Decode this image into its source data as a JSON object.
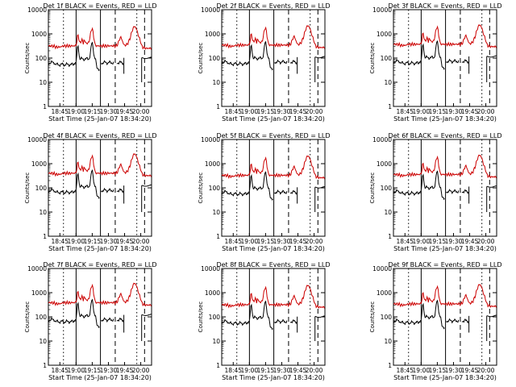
{
  "figure": {
    "xlabel": "Start Time (25-Jan-07 18:34:20)",
    "ylabel": "Counts/sec"
  },
  "chart_data": [
    {
      "type": "line",
      "title": "Det 1f BLACK = Events, RED = LLD",
      "x_ticks": [
        "18:45",
        "19:00",
        "19:15",
        "19:30",
        "19:45",
        "20:00"
      ],
      "y_ticks": [
        "1",
        "10",
        "100",
        "1000",
        "10000"
      ],
      "ylim": [
        1,
        10000
      ],
      "y_scale": "log",
      "series_colors": {
        "events": "#000000",
        "lld": "#cc0000"
      }
    },
    {
      "type": "line",
      "title": "Det 2f BLACK = Events, RED = LLD",
      "x_ticks": [
        "18:45",
        "19:00",
        "19:15",
        "19:30",
        "19:45",
        "20:00"
      ],
      "y_ticks": [
        "1",
        "10",
        "100",
        "1000",
        "10000"
      ],
      "ylim": [
        1,
        10000
      ],
      "y_scale": "log",
      "series_colors": {
        "events": "#000000",
        "lld": "#cc0000"
      }
    },
    {
      "type": "line",
      "title": "Det 3f BLACK = Events, RED = LLD",
      "x_ticks": [
        "18:45",
        "19:00",
        "19:15",
        "19:30",
        "19:45",
        "20:00"
      ],
      "y_ticks": [
        "1",
        "10",
        "100",
        "1000",
        "10000"
      ],
      "ylim": [
        1,
        10000
      ],
      "y_scale": "log",
      "series_colors": {
        "events": "#000000",
        "lld": "#cc0000"
      }
    },
    {
      "type": "line",
      "title": "Det 4f BLACK = Events, RED = LLD",
      "x_ticks": [
        "18:45",
        "19:00",
        "19:15",
        "19:30",
        "19:45",
        "20:00"
      ],
      "y_ticks": [
        "1",
        "10",
        "100",
        "1000",
        "10000"
      ],
      "ylim": [
        1,
        10000
      ],
      "y_scale": "log",
      "series_colors": {
        "events": "#000000",
        "lld": "#cc0000"
      }
    },
    {
      "type": "line",
      "title": "Det 5f BLACK = Events, RED = LLD",
      "x_ticks": [
        "18:45",
        "19:00",
        "19:15",
        "19:30",
        "19:45",
        "20:00"
      ],
      "y_ticks": [
        "1",
        "10",
        "100",
        "1000",
        "10000"
      ],
      "ylim": [
        1,
        10000
      ],
      "y_scale": "log",
      "series_colors": {
        "events": "#000000",
        "lld": "#cc0000"
      }
    },
    {
      "type": "line",
      "title": "Det 6f BLACK = Events, RED = LLD",
      "x_ticks": [
        "18:45",
        "19:00",
        "19:15",
        "19:30",
        "19:45",
        "20:00"
      ],
      "y_ticks": [
        "1",
        "10",
        "100",
        "1000",
        "10000"
      ],
      "ylim": [
        1,
        10000
      ],
      "y_scale": "log",
      "series_colors": {
        "events": "#000000",
        "lld": "#cc0000"
      }
    },
    {
      "type": "line",
      "title": "Det 7f BLACK = Events, RED = LLD",
      "x_ticks": [
        "18:45",
        "19:00",
        "19:15",
        "19:30",
        "19:45",
        "20:00"
      ],
      "y_ticks": [
        "1",
        "10",
        "100",
        "1000",
        "10000"
      ],
      "ylim": [
        1,
        10000
      ],
      "y_scale": "log",
      "series_colors": {
        "events": "#000000",
        "lld": "#cc0000"
      }
    },
    {
      "type": "line",
      "title": "Det 8f BLACK = Events, RED = LLD",
      "x_ticks": [
        "18:45",
        "19:00",
        "19:15",
        "19:30",
        "19:45",
        "20:00"
      ],
      "y_ticks": [
        "1",
        "10",
        "100",
        "1000",
        "10000"
      ],
      "ylim": [
        1,
        10000
      ],
      "y_scale": "log",
      "series_colors": {
        "events": "#000000",
        "lld": "#cc0000"
      }
    },
    {
      "type": "line",
      "title": "Det 9f BLACK = Events, RED = LLD",
      "x_ticks": [
        "18:45",
        "19:00",
        "19:15",
        "19:30",
        "19:45",
        "20:00"
      ],
      "y_ticks": [
        "1",
        "10",
        "100",
        "1000",
        "10000"
      ],
      "ylim": [
        1,
        10000
      ],
      "y_scale": "log",
      "series_colors": {
        "events": "#000000",
        "lld": "#cc0000"
      }
    }
  ]
}
